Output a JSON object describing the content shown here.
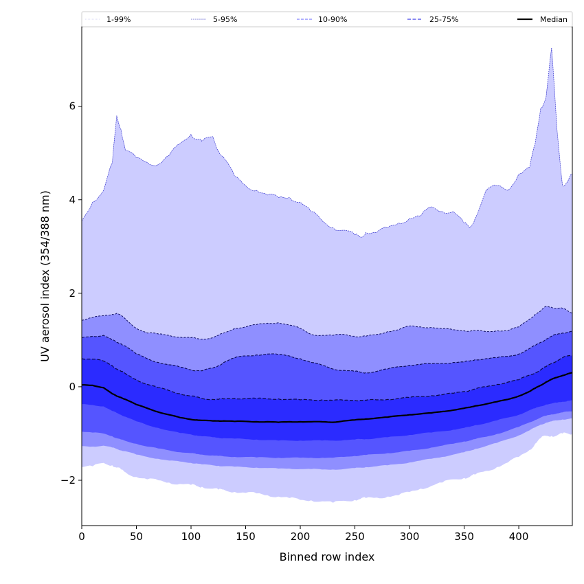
{
  "chart_data": {
    "type": "area",
    "title": "",
    "xlabel": "Binned row index",
    "ylabel": "UV aerosol index (354/388 nm)",
    "xlim": [
      0,
      449
    ],
    "ylim": [
      -2.97,
      7.7
    ],
    "x_ticks": [
      0,
      50,
      100,
      150,
      200,
      250,
      300,
      350,
      400
    ],
    "x_tick_labels": [
      "0",
      "50",
      "100",
      "150",
      "200",
      "250",
      "300",
      "350",
      "400"
    ],
    "y_ticks": [
      -2,
      0,
      2,
      4,
      6
    ],
    "y_tick_labels": [
      "−2",
      "0",
      "2",
      "4",
      "6"
    ],
    "grid": false,
    "legend_position": "top (above plot, single row)",
    "legend": [
      {
        "label": "1-99%",
        "style": "dotted",
        "color": "#ccccff"
      },
      {
        "label": "5-95%",
        "style": "dashed-thin",
        "color": "#8888ee"
      },
      {
        "label": "10-90%",
        "style": "dashed",
        "color": "#8080ff"
      },
      {
        "label": "25-75%",
        "style": "dashed",
        "color": "#5555ee"
      },
      {
        "label": "Median",
        "style": "solid",
        "color": "#000000"
      }
    ],
    "band_colors": {
      "1-99%": "#ccccff",
      "5-95%": "#8f8fff",
      "10-90%": "#5555ff",
      "25-75%": "#2b2bff"
    },
    "x": [
      0,
      10,
      20,
      28,
      32,
      36,
      40,
      50,
      60,
      70,
      80,
      90,
      100,
      105,
      110,
      120,
      125,
      130,
      140,
      150,
      160,
      170,
      180,
      190,
      200,
      210,
      220,
      230,
      240,
      250,
      255,
      260,
      270,
      280,
      290,
      300,
      310,
      320,
      330,
      340,
      350,
      355,
      360,
      370,
      380,
      390,
      400,
      410,
      415,
      420,
      425,
      430,
      435,
      440,
      445,
      449
    ],
    "series": [
      {
        "name": "p99",
        "values": [
          3.55,
          3.95,
          4.2,
          4.8,
          5.8,
          5.5,
          5.05,
          4.9,
          4.8,
          4.75,
          4.95,
          5.2,
          5.4,
          5.3,
          5.25,
          5.35,
          5.05,
          4.9,
          4.5,
          4.3,
          4.2,
          4.1,
          4.05,
          4.05,
          3.95,
          3.75,
          3.55,
          3.4,
          3.35,
          3.25,
          3.2,
          3.3,
          3.3,
          3.4,
          3.5,
          3.6,
          3.65,
          3.85,
          3.75,
          3.75,
          3.5,
          3.4,
          3.6,
          4.2,
          4.3,
          4.2,
          4.55,
          4.7,
          5.2,
          5.95,
          6.2,
          7.25,
          5.5,
          4.3,
          4.4,
          4.55
        ]
      },
      {
        "name": "p95",
        "values": [
          1.42,
          1.48,
          1.52,
          1.55,
          1.57,
          1.52,
          1.45,
          1.25,
          1.15,
          1.13,
          1.1,
          1.06,
          1.05,
          1.03,
          1.02,
          1.05,
          1.1,
          1.15,
          1.25,
          1.28,
          1.33,
          1.36,
          1.37,
          1.32,
          1.25,
          1.12,
          1.1,
          1.1,
          1.12,
          1.08,
          1.07,
          1.08,
          1.12,
          1.18,
          1.22,
          1.3,
          1.28,
          1.27,
          1.24,
          1.22,
          1.2,
          1.19,
          1.2,
          1.18,
          1.2,
          1.2,
          1.28,
          1.45,
          1.55,
          1.62,
          1.72,
          1.7,
          1.68,
          1.68,
          1.62,
          1.58
        ]
      },
      {
        "name": "p90",
        "values": [
          1.05,
          1.08,
          1.1,
          1.0,
          0.95,
          0.92,
          0.87,
          0.7,
          0.6,
          0.52,
          0.47,
          0.42,
          0.36,
          0.35,
          0.34,
          0.4,
          0.45,
          0.52,
          0.62,
          0.66,
          0.68,
          0.7,
          0.69,
          0.66,
          0.6,
          0.52,
          0.46,
          0.38,
          0.35,
          0.33,
          0.31,
          0.3,
          0.33,
          0.38,
          0.43,
          0.46,
          0.48,
          0.49,
          0.5,
          0.52,
          0.53,
          0.55,
          0.58,
          0.6,
          0.62,
          0.65,
          0.7,
          0.82,
          0.88,
          0.95,
          1.02,
          1.08,
          1.12,
          1.15,
          1.17,
          1.18
        ]
      },
      {
        "name": "p75",
        "values": [
          0.6,
          0.59,
          0.55,
          0.45,
          0.38,
          0.33,
          0.28,
          0.15,
          0.05,
          -0.02,
          -0.08,
          -0.15,
          -0.2,
          -0.22,
          -0.25,
          -0.27,
          -0.27,
          -0.26,
          -0.25,
          -0.25,
          -0.25,
          -0.26,
          -0.26,
          -0.27,
          -0.28,
          -0.28,
          -0.28,
          -0.29,
          -0.29,
          -0.29,
          -0.29,
          -0.29,
          -0.28,
          -0.27,
          -0.25,
          -0.23,
          -0.21,
          -0.19,
          -0.17,
          -0.14,
          -0.1,
          -0.08,
          -0.05,
          0.0,
          0.05,
          0.1,
          0.15,
          0.25,
          0.3,
          0.36,
          0.43,
          0.5,
          0.56,
          0.62,
          0.66,
          0.67
        ]
      },
      {
        "name": "median",
        "values": [
          0.04,
          0.03,
          -0.02,
          -0.15,
          -0.2,
          -0.23,
          -0.27,
          -0.38,
          -0.46,
          -0.54,
          -0.6,
          -0.66,
          -0.7,
          -0.71,
          -0.72,
          -0.73,
          -0.73,
          -0.73,
          -0.74,
          -0.74,
          -0.75,
          -0.75,
          -0.76,
          -0.75,
          -0.75,
          -0.75,
          -0.75,
          -0.76,
          -0.73,
          -0.71,
          -0.7,
          -0.69,
          -0.67,
          -0.65,
          -0.62,
          -0.6,
          -0.58,
          -0.56,
          -0.53,
          -0.5,
          -0.46,
          -0.44,
          -0.41,
          -0.37,
          -0.32,
          -0.27,
          -0.2,
          -0.1,
          -0.03,
          0.03,
          0.1,
          0.16,
          0.2,
          0.24,
          0.28,
          0.3
        ]
      },
      {
        "name": "p25",
        "values": [
          -0.37,
          -0.39,
          -0.42,
          -0.52,
          -0.56,
          -0.6,
          -0.64,
          -0.74,
          -0.82,
          -0.88,
          -0.94,
          -0.99,
          -1.02,
          -1.04,
          -1.06,
          -1.08,
          -1.09,
          -1.1,
          -1.11,
          -1.12,
          -1.13,
          -1.14,
          -1.15,
          -1.15,
          -1.15,
          -1.15,
          -1.15,
          -1.15,
          -1.14,
          -1.13,
          -1.12,
          -1.12,
          -1.1,
          -1.08,
          -1.06,
          -1.03,
          -1.0,
          -0.98,
          -0.95,
          -0.92,
          -0.88,
          -0.86,
          -0.82,
          -0.78,
          -0.72,
          -0.66,
          -0.6,
          -0.5,
          -0.46,
          -0.42,
          -0.38,
          -0.36,
          -0.34,
          -0.32,
          -0.3,
          -0.29
        ]
      },
      {
        "name": "p10",
        "values": [
          -0.96,
          -0.98,
          -1.0,
          -1.06,
          -1.1,
          -1.13,
          -1.16,
          -1.22,
          -1.28,
          -1.32,
          -1.36,
          -1.4,
          -1.42,
          -1.44,
          -1.45,
          -1.47,
          -1.48,
          -1.49,
          -1.5,
          -1.5,
          -1.51,
          -1.51,
          -1.52,
          -1.52,
          -1.52,
          -1.52,
          -1.52,
          -1.52,
          -1.5,
          -1.48,
          -1.47,
          -1.46,
          -1.44,
          -1.42,
          -1.4,
          -1.37,
          -1.34,
          -1.3,
          -1.26,
          -1.22,
          -1.17,
          -1.15,
          -1.12,
          -1.07,
          -1.01,
          -0.94,
          -0.86,
          -0.76,
          -0.71,
          -0.66,
          -0.62,
          -0.59,
          -0.57,
          -0.55,
          -0.53,
          -0.52
        ]
      },
      {
        "name": "p5",
        "values": [
          -1.27,
          -1.28,
          -1.26,
          -1.3,
          -1.33,
          -1.36,
          -1.38,
          -1.45,
          -1.5,
          -1.54,
          -1.58,
          -1.6,
          -1.63,
          -1.64,
          -1.66,
          -1.68,
          -1.69,
          -1.7,
          -1.71,
          -1.72,
          -1.73,
          -1.74,
          -1.75,
          -1.75,
          -1.76,
          -1.76,
          -1.77,
          -1.77,
          -1.76,
          -1.74,
          -1.73,
          -1.72,
          -1.7,
          -1.68,
          -1.65,
          -1.62,
          -1.58,
          -1.54,
          -1.5,
          -1.45,
          -1.4,
          -1.37,
          -1.33,
          -1.27,
          -1.2,
          -1.12,
          -1.04,
          -0.93,
          -0.87,
          -0.81,
          -0.77,
          -0.74,
          -0.72,
          -0.7,
          -0.69,
          -0.68
        ]
      },
      {
        "name": "p1",
        "values": [
          -1.72,
          -1.7,
          -1.63,
          -1.68,
          -1.73,
          -1.77,
          -1.83,
          -1.93,
          -1.98,
          -2.0,
          -2.05,
          -2.08,
          -2.1,
          -2.12,
          -2.14,
          -2.18,
          -2.2,
          -2.2,
          -2.25,
          -2.27,
          -2.28,
          -2.32,
          -2.35,
          -2.38,
          -2.42,
          -2.43,
          -2.45,
          -2.48,
          -2.44,
          -2.42,
          -2.4,
          -2.38,
          -2.37,
          -2.35,
          -2.32,
          -2.25,
          -2.18,
          -2.12,
          -2.05,
          -1.98,
          -1.95,
          -1.93,
          -1.88,
          -1.8,
          -1.72,
          -1.62,
          -1.5,
          -1.35,
          -1.22,
          -1.1,
          -1.05,
          -1.05,
          -1.04,
          -1.0,
          -1.0,
          -1.0
        ]
      }
    ]
  }
}
